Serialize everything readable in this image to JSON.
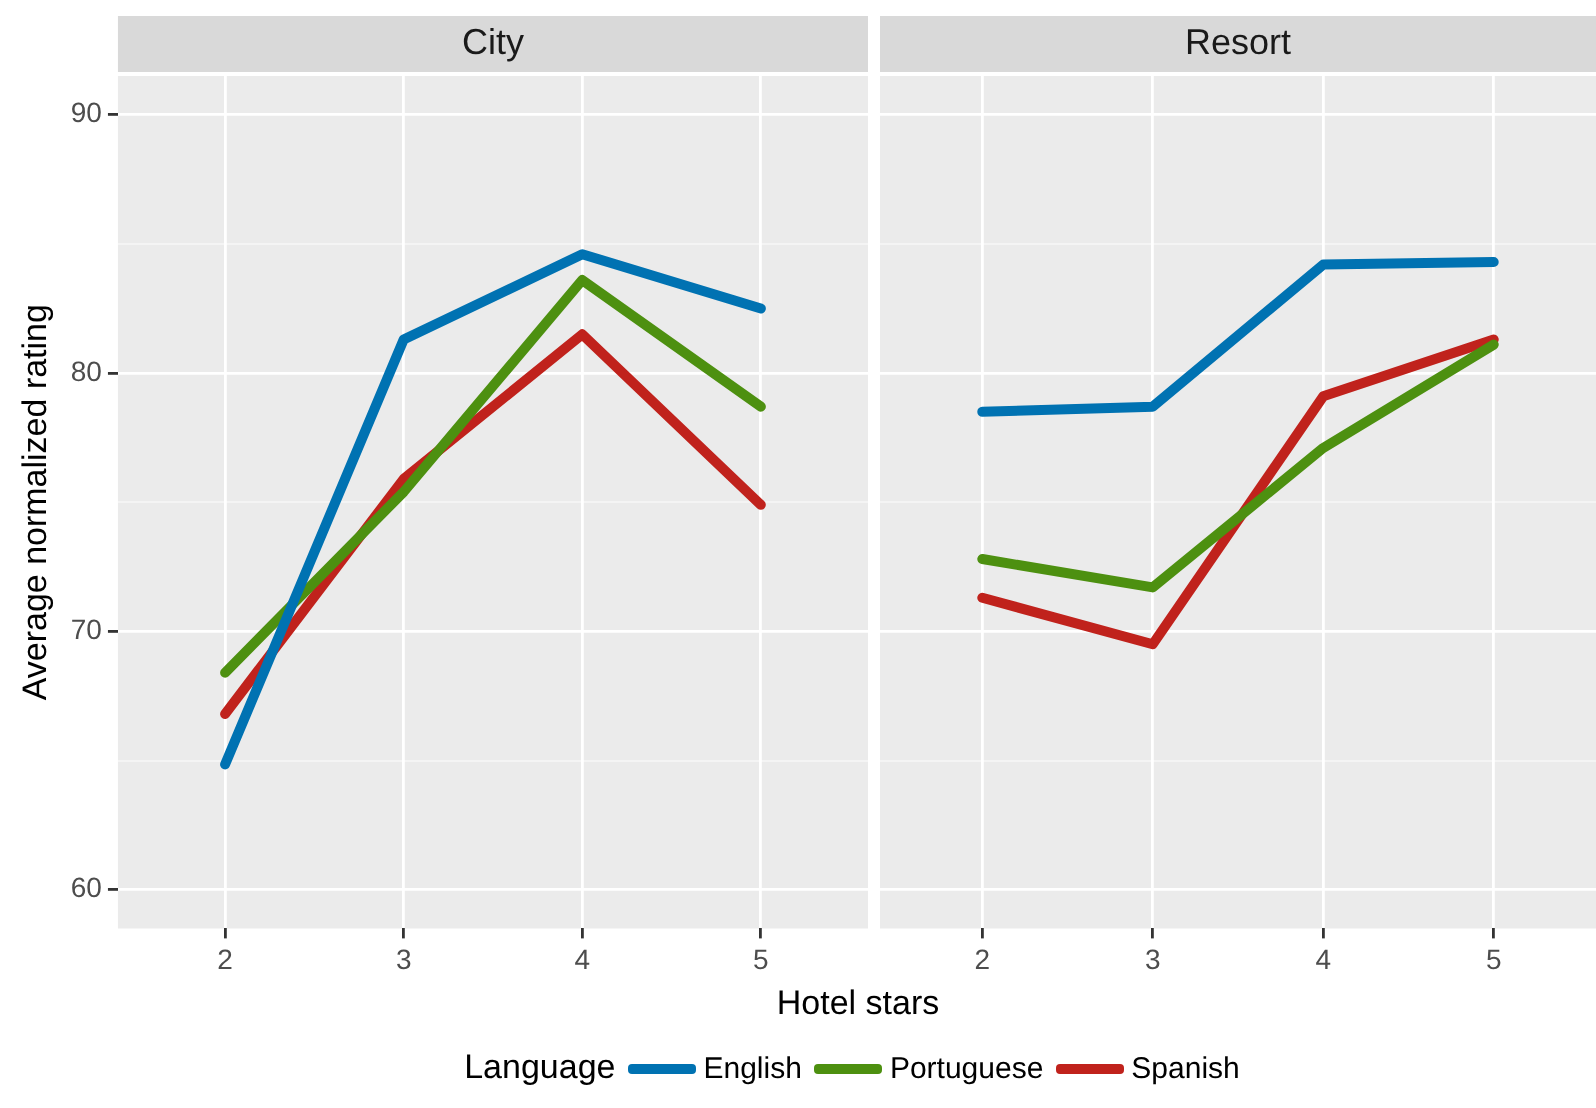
{
  "chart_data": [
    {
      "type": "line",
      "title": "City",
      "ylabel": "Average normalized rating",
      "xlabel": "Hotel stars",
      "legend_title": "Language",
      "legend": "bottom",
      "marker": "none",
      "line_style": "solid",
      "grid": true,
      "x": [
        2,
        3,
        4,
        5
      ],
      "xlim": [
        1.4,
        5.6
      ],
      "xticks": [
        2,
        3,
        4,
        5
      ],
      "ylim": [
        58.5,
        91.5
      ],
      "yticks": [
        60,
        {
          "value": 65,
          "label": null
        },
        70,
        {
          "value": 75,
          "label": null
        },
        80,
        {
          "value": 85,
          "label": null
        },
        90
      ],
      "series": [
        {
          "name": "English",
          "color": "#0072b2",
          "values": [
            64.85,
            81.3,
            84.6,
            82.5
          ]
        },
        {
          "name": "Portuguese",
          "color": "#4d9010",
          "values": [
            68.4,
            75.4,
            83.6,
            78.7
          ]
        },
        {
          "name": "Spanish",
          "color": "#c0221c",
          "values": [
            66.8,
            75.9,
            81.5,
            74.9
          ]
        }
      ]
    },
    {
      "type": "line",
      "title": "Resort",
      "marker": "none",
      "line_style": "solid",
      "grid": true,
      "tick_labels": "x",
      "x": [
        2,
        3,
        4,
        5
      ],
      "xlim": [
        1.4,
        5.6
      ],
      "xticks": [
        2,
        3,
        4,
        5
      ],
      "ylim": [
        58.5,
        91.5
      ],
      "yticks": [
        60,
        {
          "value": 65,
          "label": null
        },
        70,
        {
          "value": 75,
          "label": null
        },
        80,
        {
          "value": 85,
          "label": null
        },
        90
      ],
      "series": [
        {
          "name": "English",
          "color": "#0072b2",
          "values": [
            78.5,
            78.7,
            84.2,
            84.3
          ]
        },
        {
          "name": "Portuguese",
          "color": "#4d9010",
          "values": [
            72.8,
            71.7,
            77.1,
            81.1
          ]
        },
        {
          "name": "Spanish",
          "color": "#c0221c",
          "values": [
            71.3,
            69.5,
            79.1,
            81.3
          ]
        }
      ]
    }
  ]
}
